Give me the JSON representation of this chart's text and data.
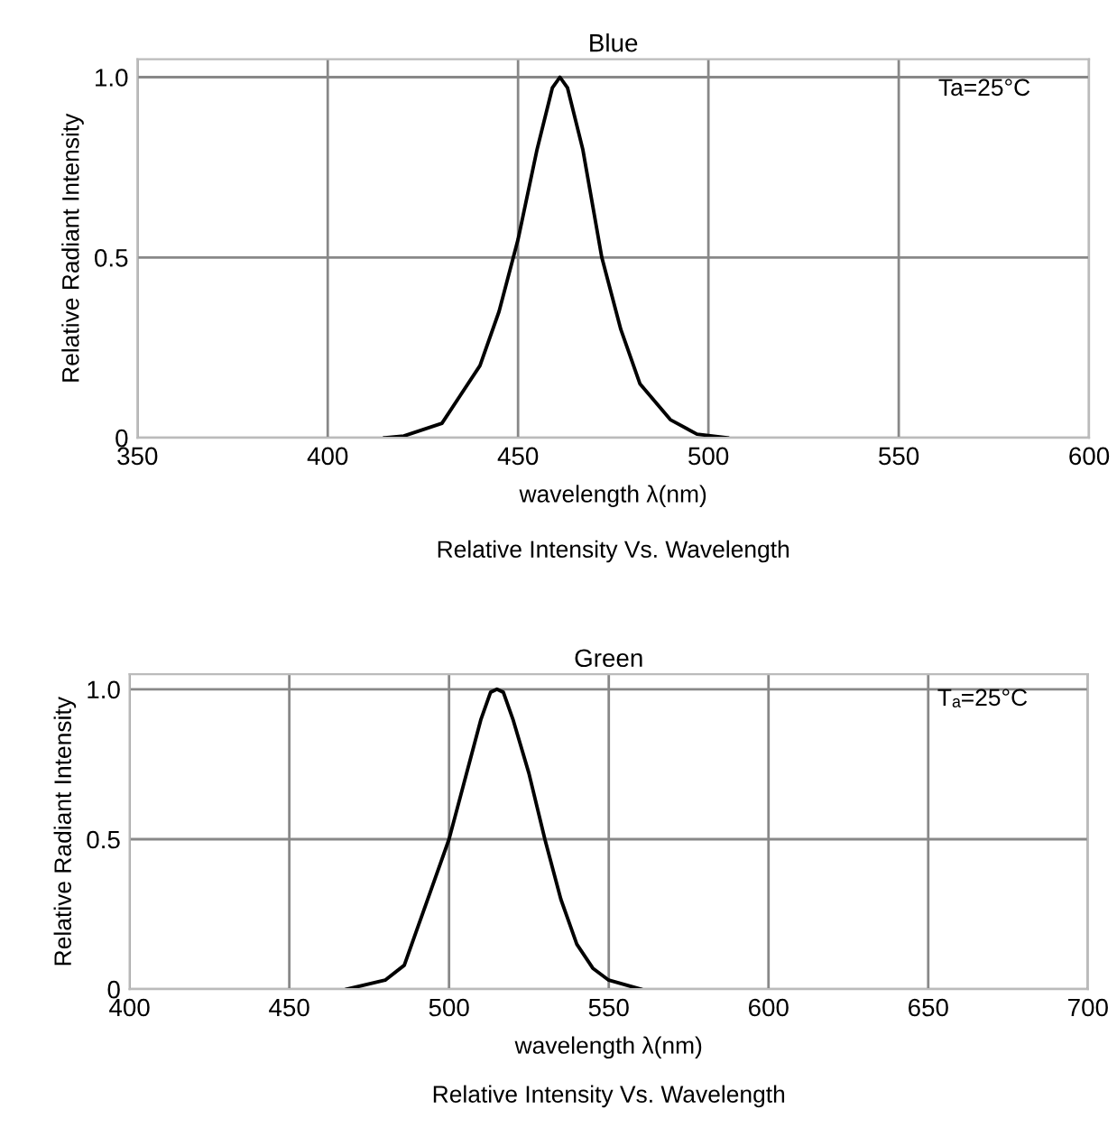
{
  "chart_data": [
    {
      "type": "line",
      "title": "Blue",
      "xlabel": "wavelength λ(nm)",
      "ylabel": "Relative Radiant Intensity",
      "annotations": [
        "Ta=25°C",
        "Relative Intensity Vs. Wavelength"
      ],
      "xlim": [
        350,
        600
      ],
      "xticks": [
        350,
        400,
        450,
        500,
        550,
        600
      ],
      "ylim": [
        0,
        1.05
      ],
      "yticks": [
        0,
        0.5,
        {
          "value": 1,
          "label": "1.0"
        }
      ],
      "grid": true,
      "marker": "none",
      "line_style": "solid",
      "series": [
        {
          "color": "#000000",
          "x": [
            415,
            420,
            430,
            440,
            445,
            450,
            455,
            459,
            461,
            463,
            467,
            472,
            477,
            482,
            490,
            497,
            505
          ],
          "values": [
            0,
            0.005,
            0.04,
            0.2,
            0.35,
            0.55,
            0.8,
            0.97,
            1.0,
            0.97,
            0.8,
            0.5,
            0.3,
            0.15,
            0.05,
            0.01,
            0
          ]
        }
      ]
    },
    {
      "type": "line",
      "title": "Green",
      "xlabel": "wavelength λ(nm)",
      "ylabel": "Relative Radiant Intensity",
      "annotations": [
        "Tₐ=25°C",
        "Relative Intensity Vs. Wavelength"
      ],
      "xlim": [
        400,
        700
      ],
      "xticks": [
        400,
        450,
        500,
        550,
        600,
        650,
        700
      ],
      "ylim": [
        0,
        1.05
      ],
      "yticks": [
        0,
        0.5,
        {
          "value": 1,
          "label": "1.0"
        }
      ],
      "grid": true,
      "marker": "none",
      "line_style": "solid",
      "series": [
        {
          "color": "#000000",
          "x": [
            468,
            480,
            486,
            490,
            495,
            500,
            505,
            510,
            513,
            515,
            517,
            520,
            525,
            530,
            535,
            540,
            545,
            550,
            560
          ],
          "values": [
            0,
            0.03,
            0.08,
            0.2,
            0.35,
            0.5,
            0.7,
            0.9,
            0.99,
            1.0,
            0.99,
            0.9,
            0.72,
            0.5,
            0.3,
            0.15,
            0.07,
            0.03,
            0
          ]
        }
      ]
    }
  ]
}
